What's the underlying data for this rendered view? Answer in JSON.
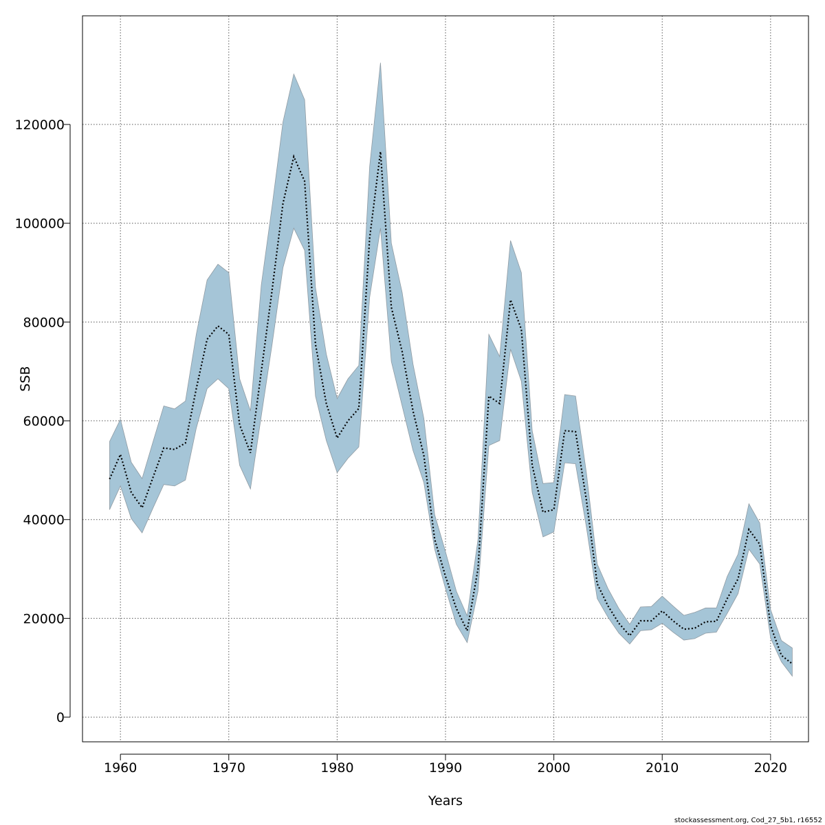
{
  "chart_data": {
    "type": "area",
    "title": "",
    "xlabel": "Years",
    "ylabel": "SSB",
    "xlim": [
      1956.5,
      2023.5
    ],
    "ylim": [
      -5000,
      142000
    ],
    "xticks": [
      1960,
      1970,
      1980,
      1990,
      2000,
      2010,
      2020
    ],
    "yticks": [
      0,
      20000,
      40000,
      60000,
      80000,
      100000,
      120000
    ],
    "grid": true,
    "colors": {
      "band": "#a5c5d7",
      "band_edge": "#8f9aa2",
      "line": "#000000",
      "grid": "#555555"
    },
    "x": [
      1959,
      1960,
      1961,
      1962,
      1963,
      1964,
      1965,
      1966,
      1967,
      1968,
      1969,
      1970,
      1971,
      1972,
      1973,
      1974,
      1975,
      1976,
      1977,
      1978,
      1979,
      1980,
      1981,
      1982,
      1983,
      1984,
      1985,
      1986,
      1987,
      1988,
      1989,
      1990,
      1991,
      1992,
      1993,
      1994,
      1995,
      1996,
      1997,
      1998,
      1999,
      2000,
      2001,
      2002,
      2003,
      2004,
      2005,
      2006,
      2007,
      2008,
      2009,
      2010,
      2011,
      2012,
      2013,
      2014,
      2015,
      2016,
      2017,
      2018,
      2019,
      2020,
      2021,
      2022
    ],
    "series": [
      {
        "role": "estimate",
        "values": [
          48200,
          53200,
          45500,
          42400,
          48500,
          54500,
          54200,
          55500,
          66500,
          76500,
          79200,
          77500,
          59200,
          53500,
          70000,
          86500,
          104000,
          113500,
          108500,
          75500,
          63500,
          56500,
          60000,
          62500,
          97000,
          114500,
          83000,
          74000,
          62000,
          53000,
          36000,
          28500,
          22000,
          17500,
          30000,
          65000,
          63500,
          84500,
          78500,
          51000,
          41500,
          42000,
          58000,
          57800,
          44000,
          27000,
          22500,
          19000,
          16500,
          19500,
          19500,
          21500,
          19500,
          17800,
          18000,
          19300,
          19400,
          24000,
          28000,
          38000,
          35000,
          18500,
          12500,
          10800
        ]
      },
      {
        "role": "upper",
        "values": [
          55800,
          60300,
          51600,
          48300,
          55700,
          63000,
          62400,
          64000,
          77500,
          88500,
          91700,
          90000,
          68500,
          62000,
          87500,
          103500,
          120500,
          130200,
          125000,
          87000,
          73500,
          64500,
          68500,
          71200,
          111500,
          132500,
          96000,
          86000,
          71500,
          60500,
          41000,
          33500,
          25500,
          20500,
          36000,
          77500,
          73000,
          96500,
          90000,
          58000,
          47300,
          47500,
          65300,
          65000,
          49500,
          31000,
          26000,
          22000,
          18800,
          22300,
          22400,
          24500,
          22500,
          20600,
          21200,
          22100,
          22100,
          28500,
          33000,
          43200,
          39300,
          21800,
          15500,
          14000
        ]
      },
      {
        "role": "lower",
        "values": [
          42000,
          46800,
          40200,
          37300,
          42300,
          47100,
          46800,
          48000,
          58500,
          66500,
          68500,
          66500,
          51000,
          46200,
          61000,
          75500,
          91000,
          99000,
          94500,
          65000,
          56000,
          49500,
          52400,
          54700,
          85000,
          99000,
          72000,
          63000,
          54000,
          47500,
          34000,
          26000,
          18800,
          15100,
          25500,
          55000,
          56000,
          74500,
          68000,
          45500,
          36500,
          37500,
          51500,
          51300,
          38500,
          24000,
          20200,
          17000,
          14800,
          17500,
          17700,
          19000,
          17200,
          15600,
          15900,
          17000,
          17200,
          21000,
          25000,
          34000,
          31000,
          16000,
          11200,
          8300
        ]
      }
    ]
  },
  "footer": {
    "credit": "stockassessment.org, Cod_27_5b1, r16552"
  }
}
